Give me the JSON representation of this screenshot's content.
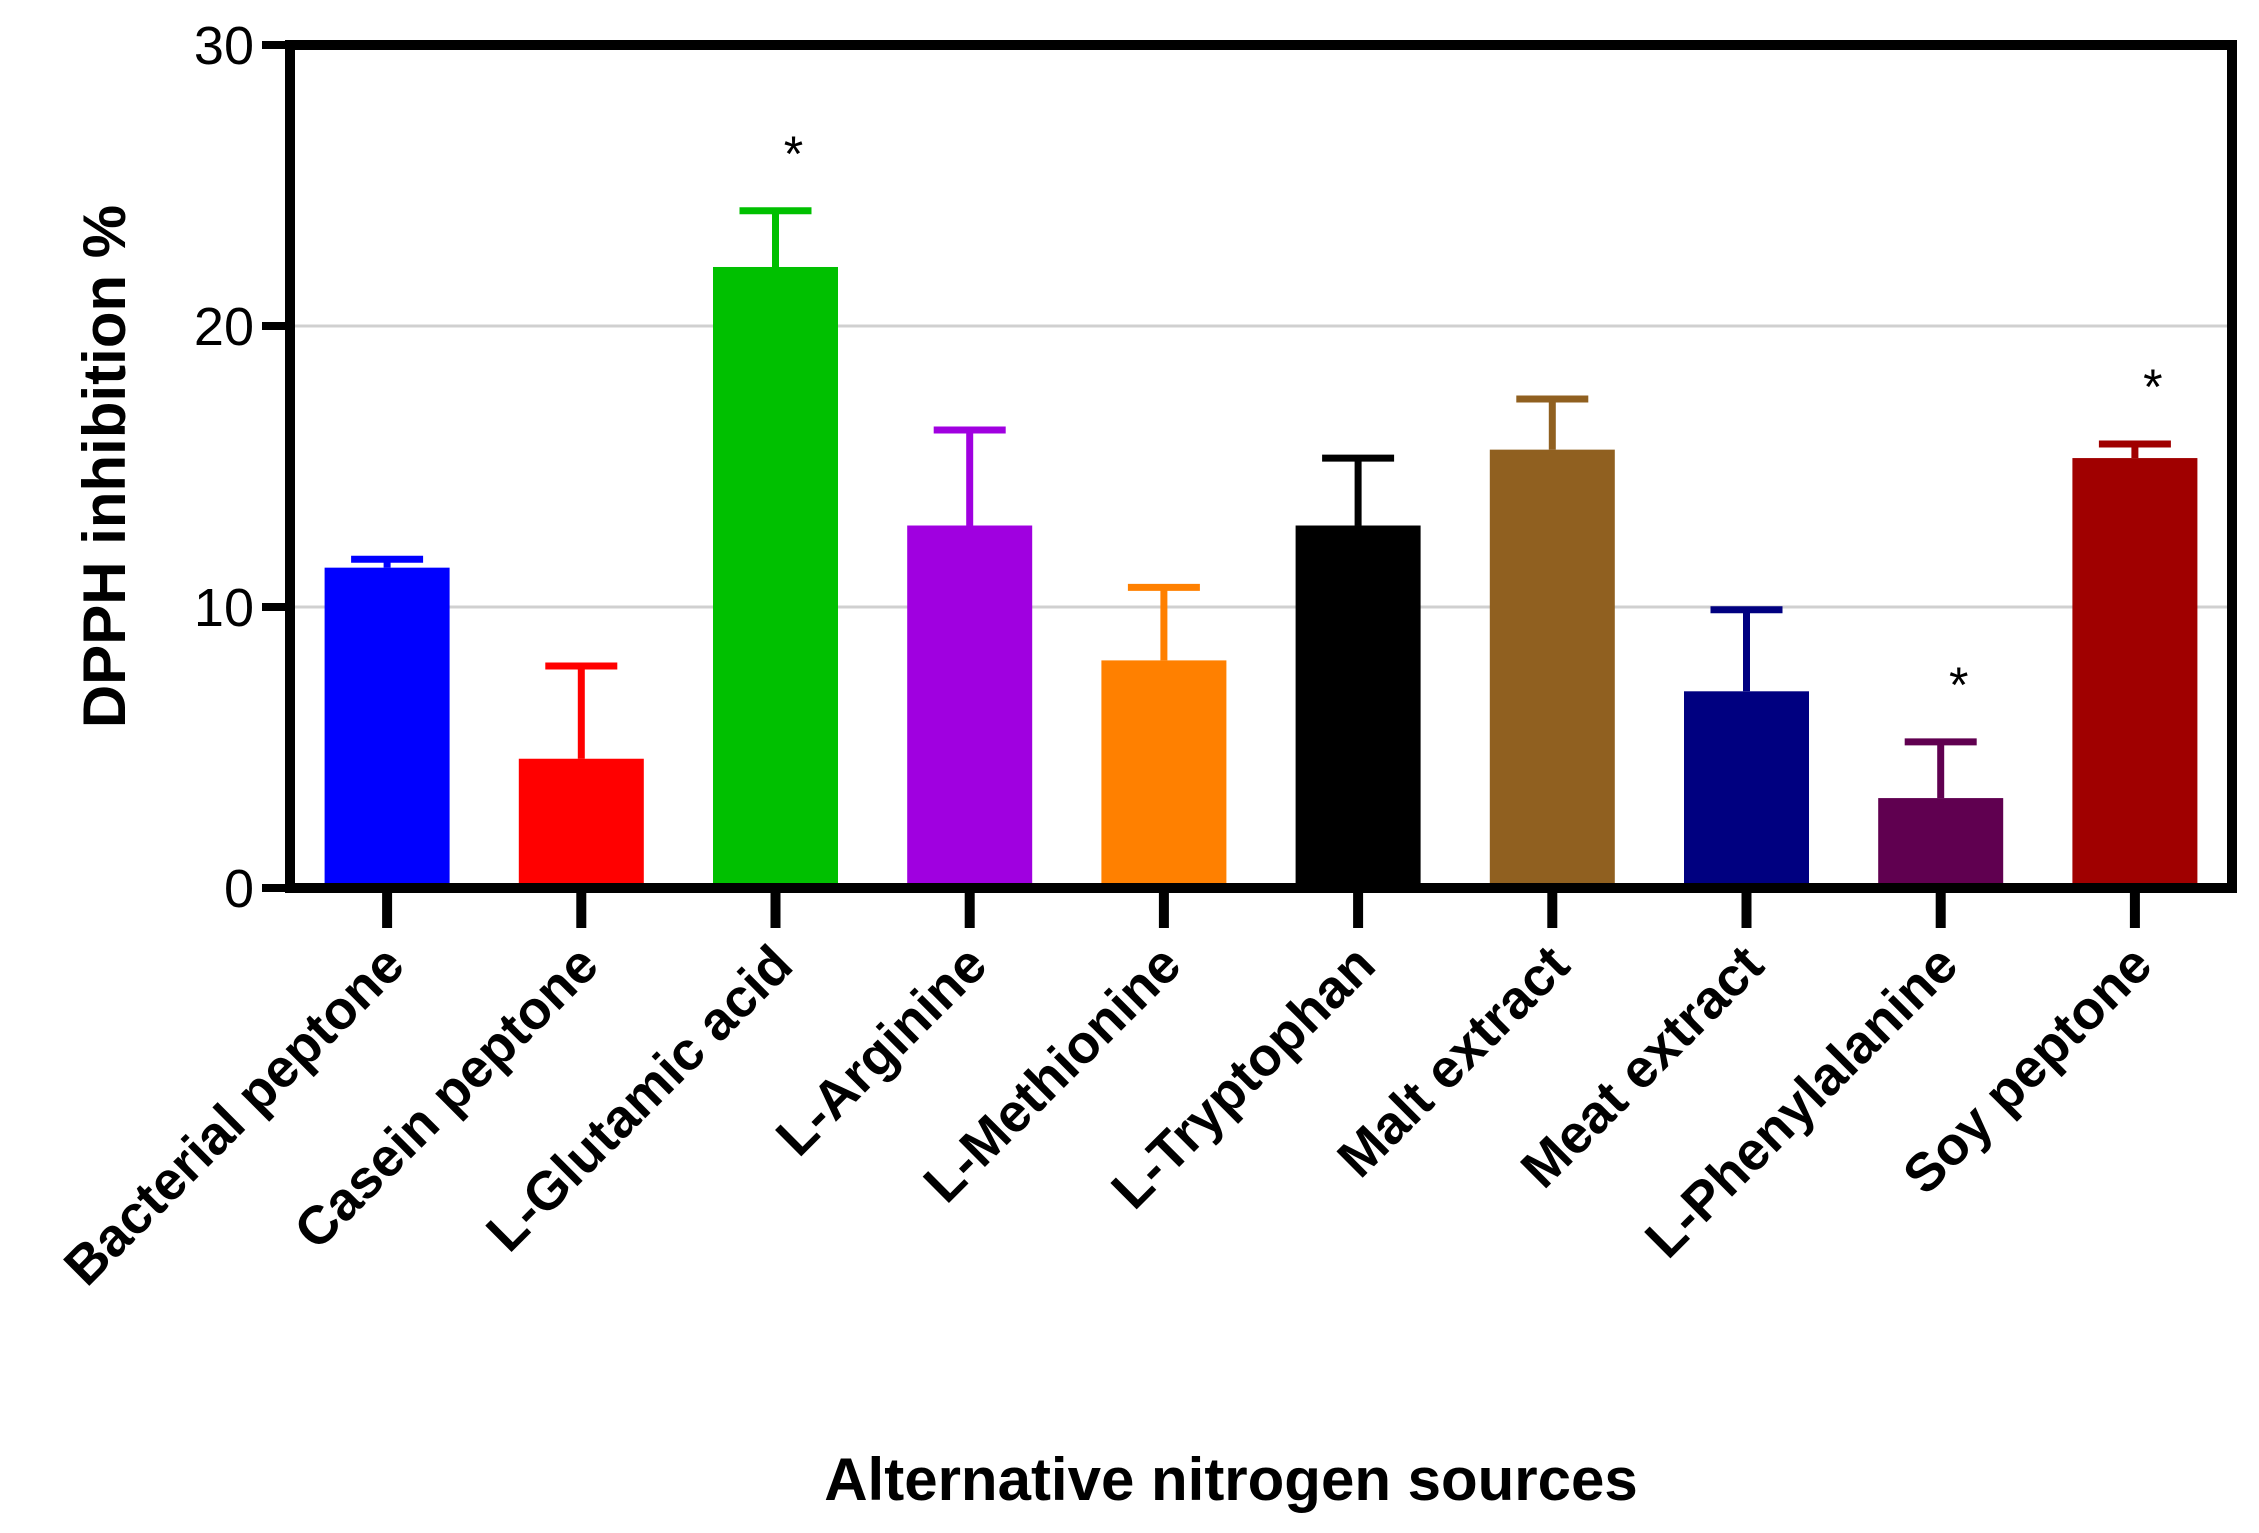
{
  "chart_data": {
    "type": "bar",
    "title": "",
    "xlabel": "Alternative nitrogen sources",
    "ylabel": "DPPH inhibition %",
    "ylim": [
      0,
      30
    ],
    "yticks": [
      0,
      10,
      20,
      30
    ],
    "grid": "horizontal",
    "categories": [
      "Bacterial peptone",
      "Casein peptone",
      "L-Glutamic acid",
      "L-Arginine",
      "L-Methionine",
      "L-Tryptophan",
      "Malt extract",
      "Meat extract",
      "L-Phenylalanine",
      "Soy peptone"
    ],
    "values": [
      11.4,
      4.6,
      22.1,
      12.9,
      8.1,
      12.9,
      15.6,
      7.0,
      3.2,
      15.3
    ],
    "errors": [
      0.3,
      3.3,
      2.0,
      3.4,
      2.6,
      2.4,
      1.8,
      2.9,
      2.0,
      0.5
    ],
    "colors": [
      "#0000ff",
      "#ff0000",
      "#00c000",
      "#a000e0",
      "#ff8000",
      "#000000",
      "#906020",
      "#000080",
      "#600050",
      "#a00000"
    ],
    "annotations": [
      "",
      "",
      "*",
      "",
      "",
      "",
      "",
      "",
      "*",
      "*"
    ]
  }
}
